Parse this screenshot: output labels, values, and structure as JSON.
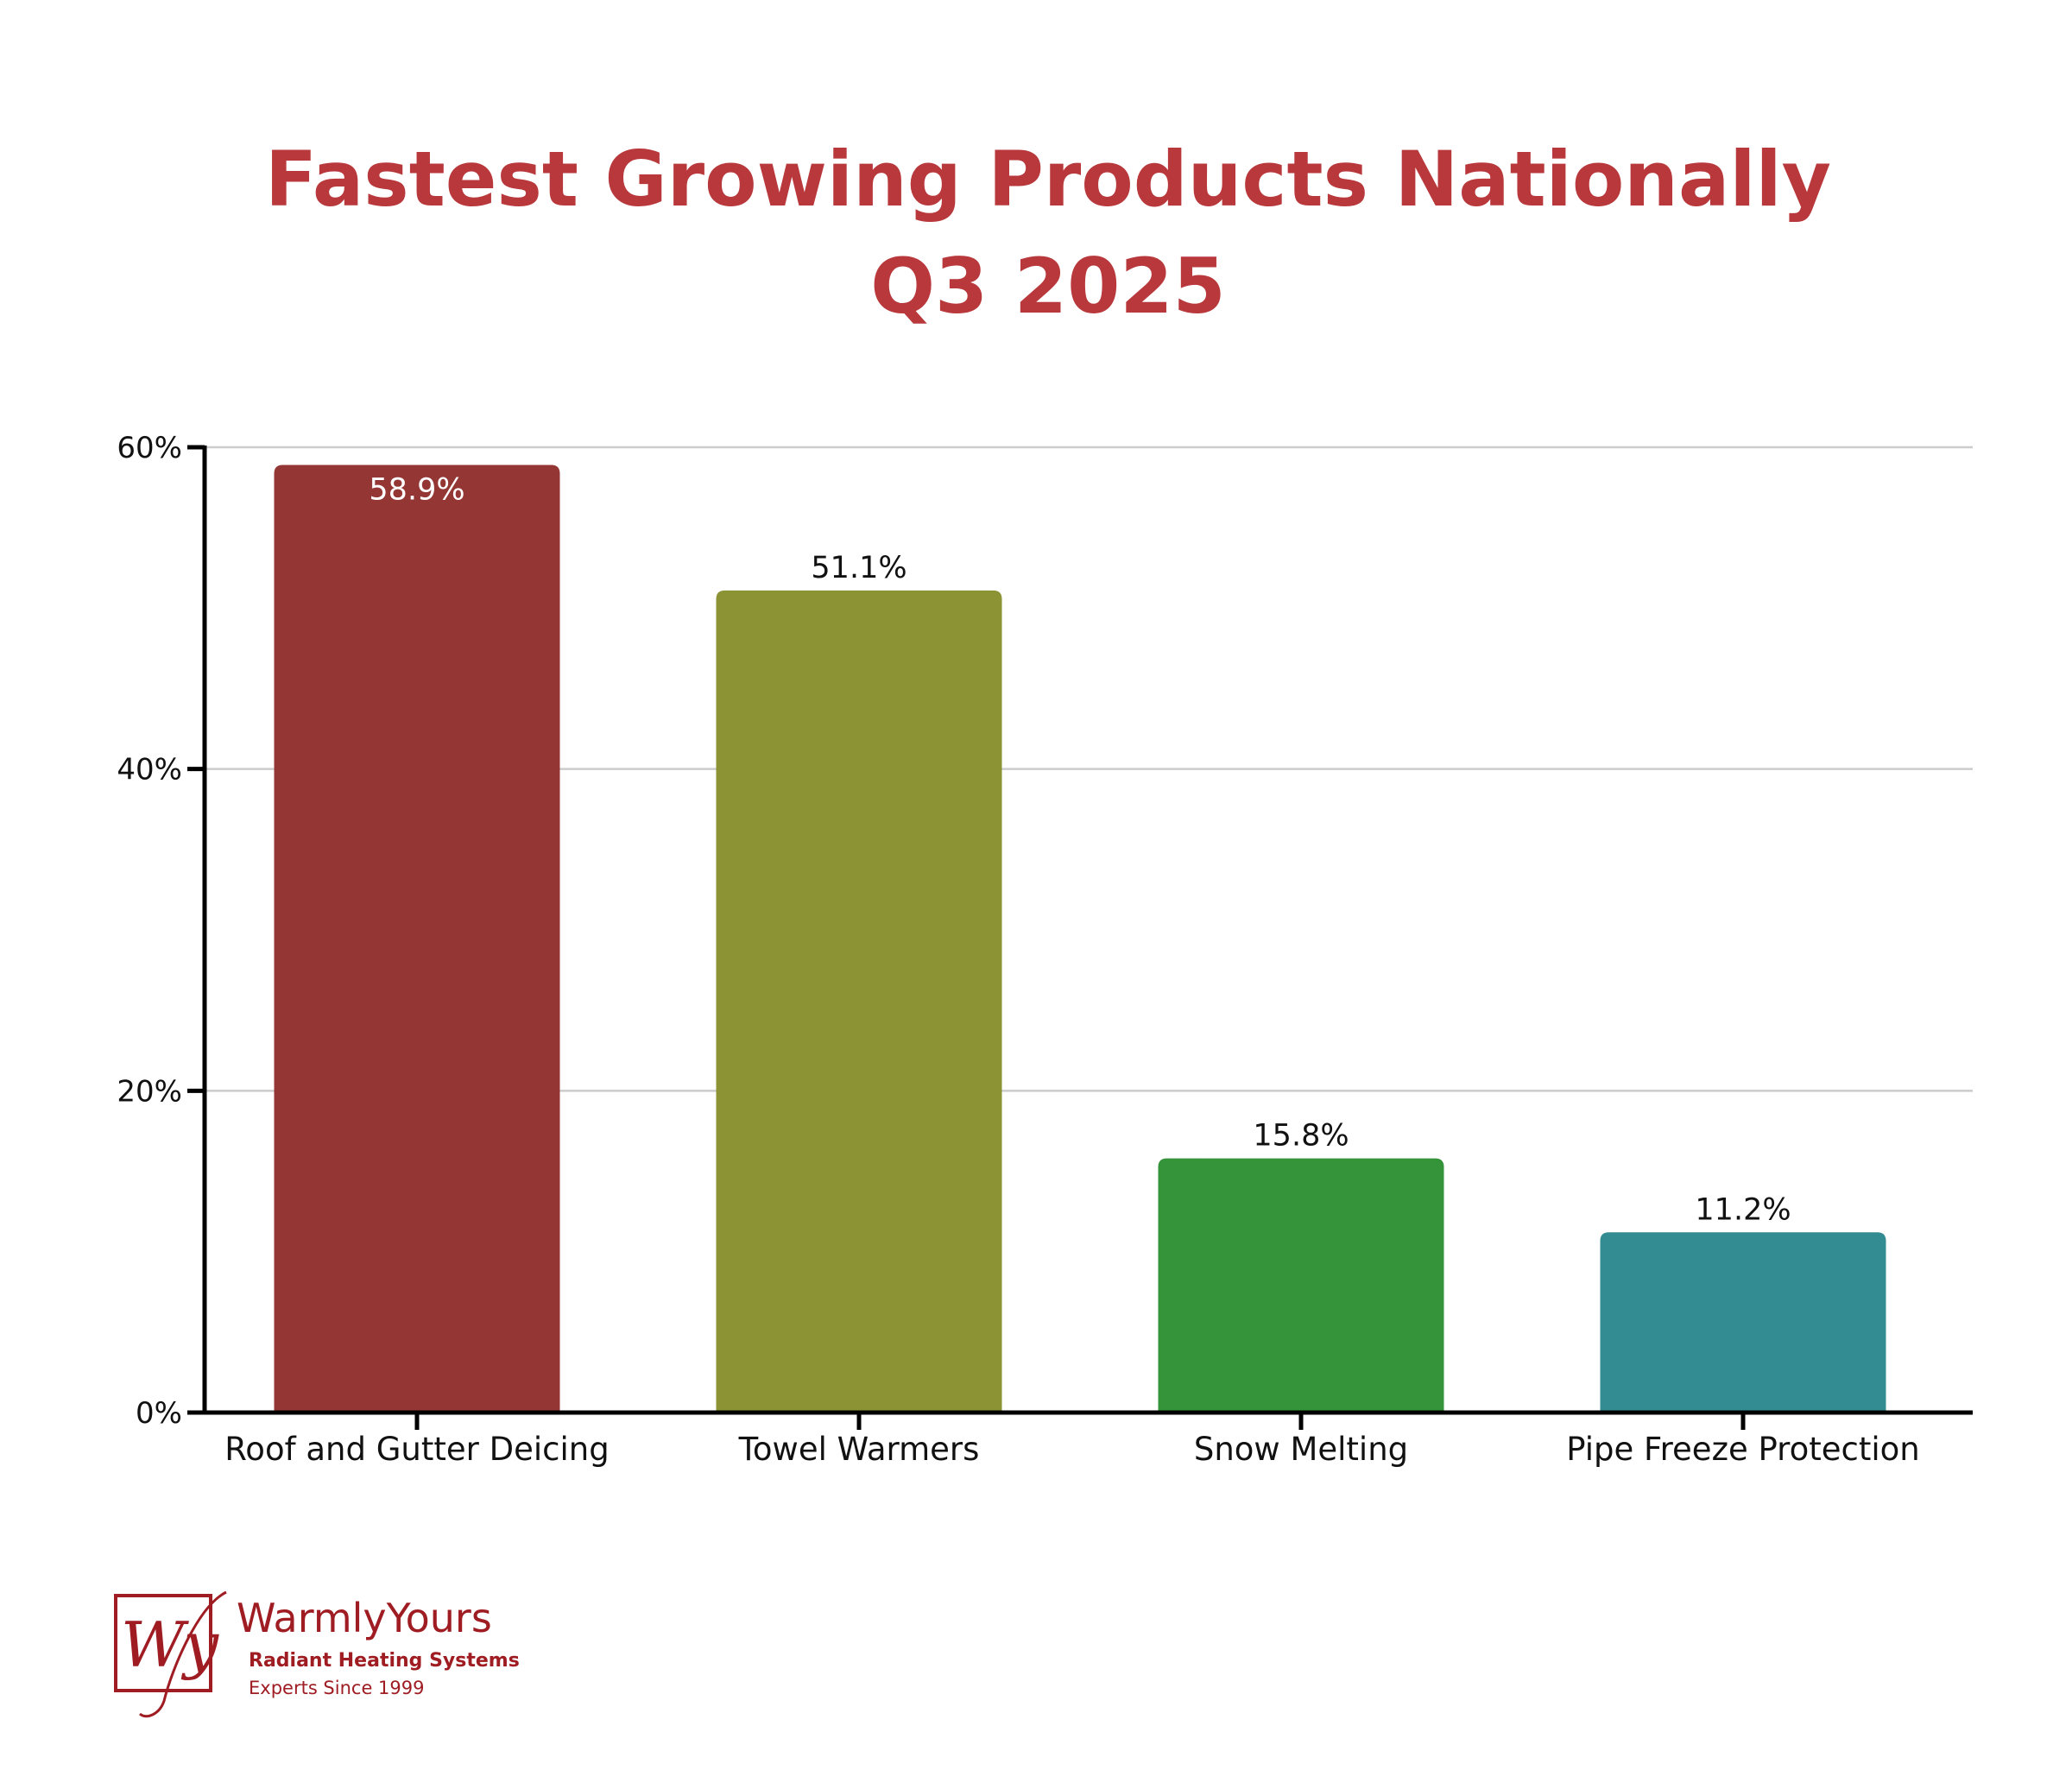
{
  "chart_data": {
    "type": "bar",
    "title": "Fastest Growing Products Nationally",
    "subtitle": "Q3 2025",
    "xlabel": "",
    "ylabel": "",
    "categories": [
      "Roof and Gutter Deicing",
      "Towel Warmers",
      "Snow Melting",
      "Pipe Freeze Protection"
    ],
    "values": [
      58.9,
      51.1,
      15.8,
      11.2
    ],
    "data_labels": [
      "58.9%",
      "51.1%",
      "15.8%",
      "11.2%"
    ],
    "bar_colors": [
      "#943734",
      "#8c9335",
      "#359339",
      "#348c93"
    ],
    "ylim": [
      0,
      60
    ],
    "yticks": [
      0,
      20,
      40,
      60
    ],
    "ytick_labels": [
      "0%",
      "20%",
      "40%",
      "60%"
    ],
    "grid": true,
    "legend": "none"
  },
  "colors": {
    "title": "#b8383b",
    "brand": "#9e1c22"
  },
  "logo": {
    "monogram": "Wy",
    "brand_name": "WarmlyYours",
    "tagline": "Radiant Heating Systems",
    "since": "Experts Since 1999"
  }
}
